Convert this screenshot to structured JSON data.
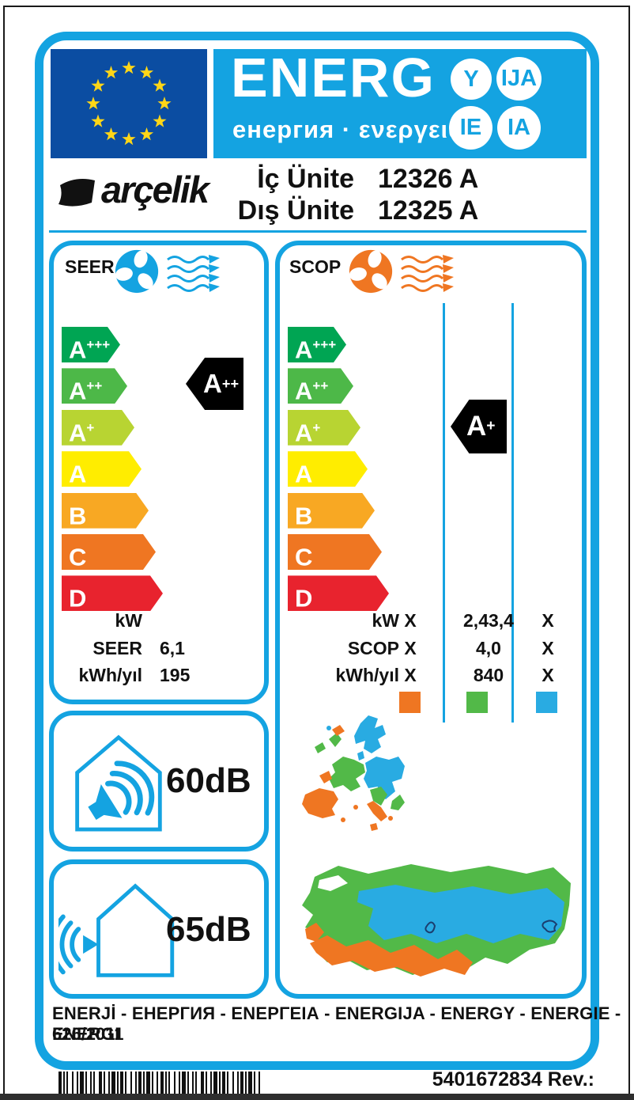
{
  "header": {
    "energ": "ENERG",
    "subtitle": "енергия · ενεργεια",
    "circles": [
      "Y",
      "IJA",
      "IE",
      "IA"
    ],
    "brand": "arçelik"
  },
  "units": {
    "row1_label": "İç Ünite",
    "row1_value": "12326 A",
    "row2_label": "Dış Ünite",
    "row2_value": "12325 A"
  },
  "scale": [
    {
      "base": "A",
      "sup": "+++",
      "color": "#00a553"
    },
    {
      "base": "A",
      "sup": "++",
      "color": "#4db848"
    },
    {
      "base": "A",
      "sup": "+",
      "color": "#b8d432"
    },
    {
      "base": "A",
      "sup": "",
      "color": "#ffed00"
    },
    {
      "base": "B",
      "sup": "",
      "color": "#f8a823"
    },
    {
      "base": "C",
      "sup": "",
      "color": "#ef7622"
    },
    {
      "base": "D",
      "sup": "",
      "color": "#e8232e"
    }
  ],
  "seer": {
    "title": "SEER",
    "rating_base": "A",
    "rating_sup": "++",
    "rows": [
      {
        "label": "kW",
        "value": ""
      },
      {
        "label": "SEER",
        "value": "6,1"
      },
      {
        "label": "kWh/yıl",
        "value": "195"
      }
    ]
  },
  "scop": {
    "title": "SCOP",
    "rating_base": "A",
    "rating_sup": "+",
    "rows": [
      {
        "label": "kW",
        "c1": "X",
        "c2": "2,43,4",
        "c3": "X"
      },
      {
        "label": "SCOP",
        "c1": "X",
        "c2": "4,0",
        "c3": "X"
      },
      {
        "label": "kWh/yıl",
        "c1": "X",
        "c2": "840",
        "c3": "X"
      }
    ],
    "zone_colors": {
      "warm": "#ef7622",
      "average": "#52b948",
      "cold": "#29abe2"
    }
  },
  "noise": {
    "indoor": "60dB",
    "outdoor": "65dB"
  },
  "footer": {
    "languages": "ENERJİ - ЕНЕРГИЯ - ΕΝΕΡΓΕΙΑ - ENERGIJA - ENERGY - ENERGIE - ENERGI",
    "regulation": "626/2011",
    "code": "5401672834 Rev.:"
  },
  "accent_color": "#14a3e1",
  "eu_flag_blue": "#0b4da2"
}
